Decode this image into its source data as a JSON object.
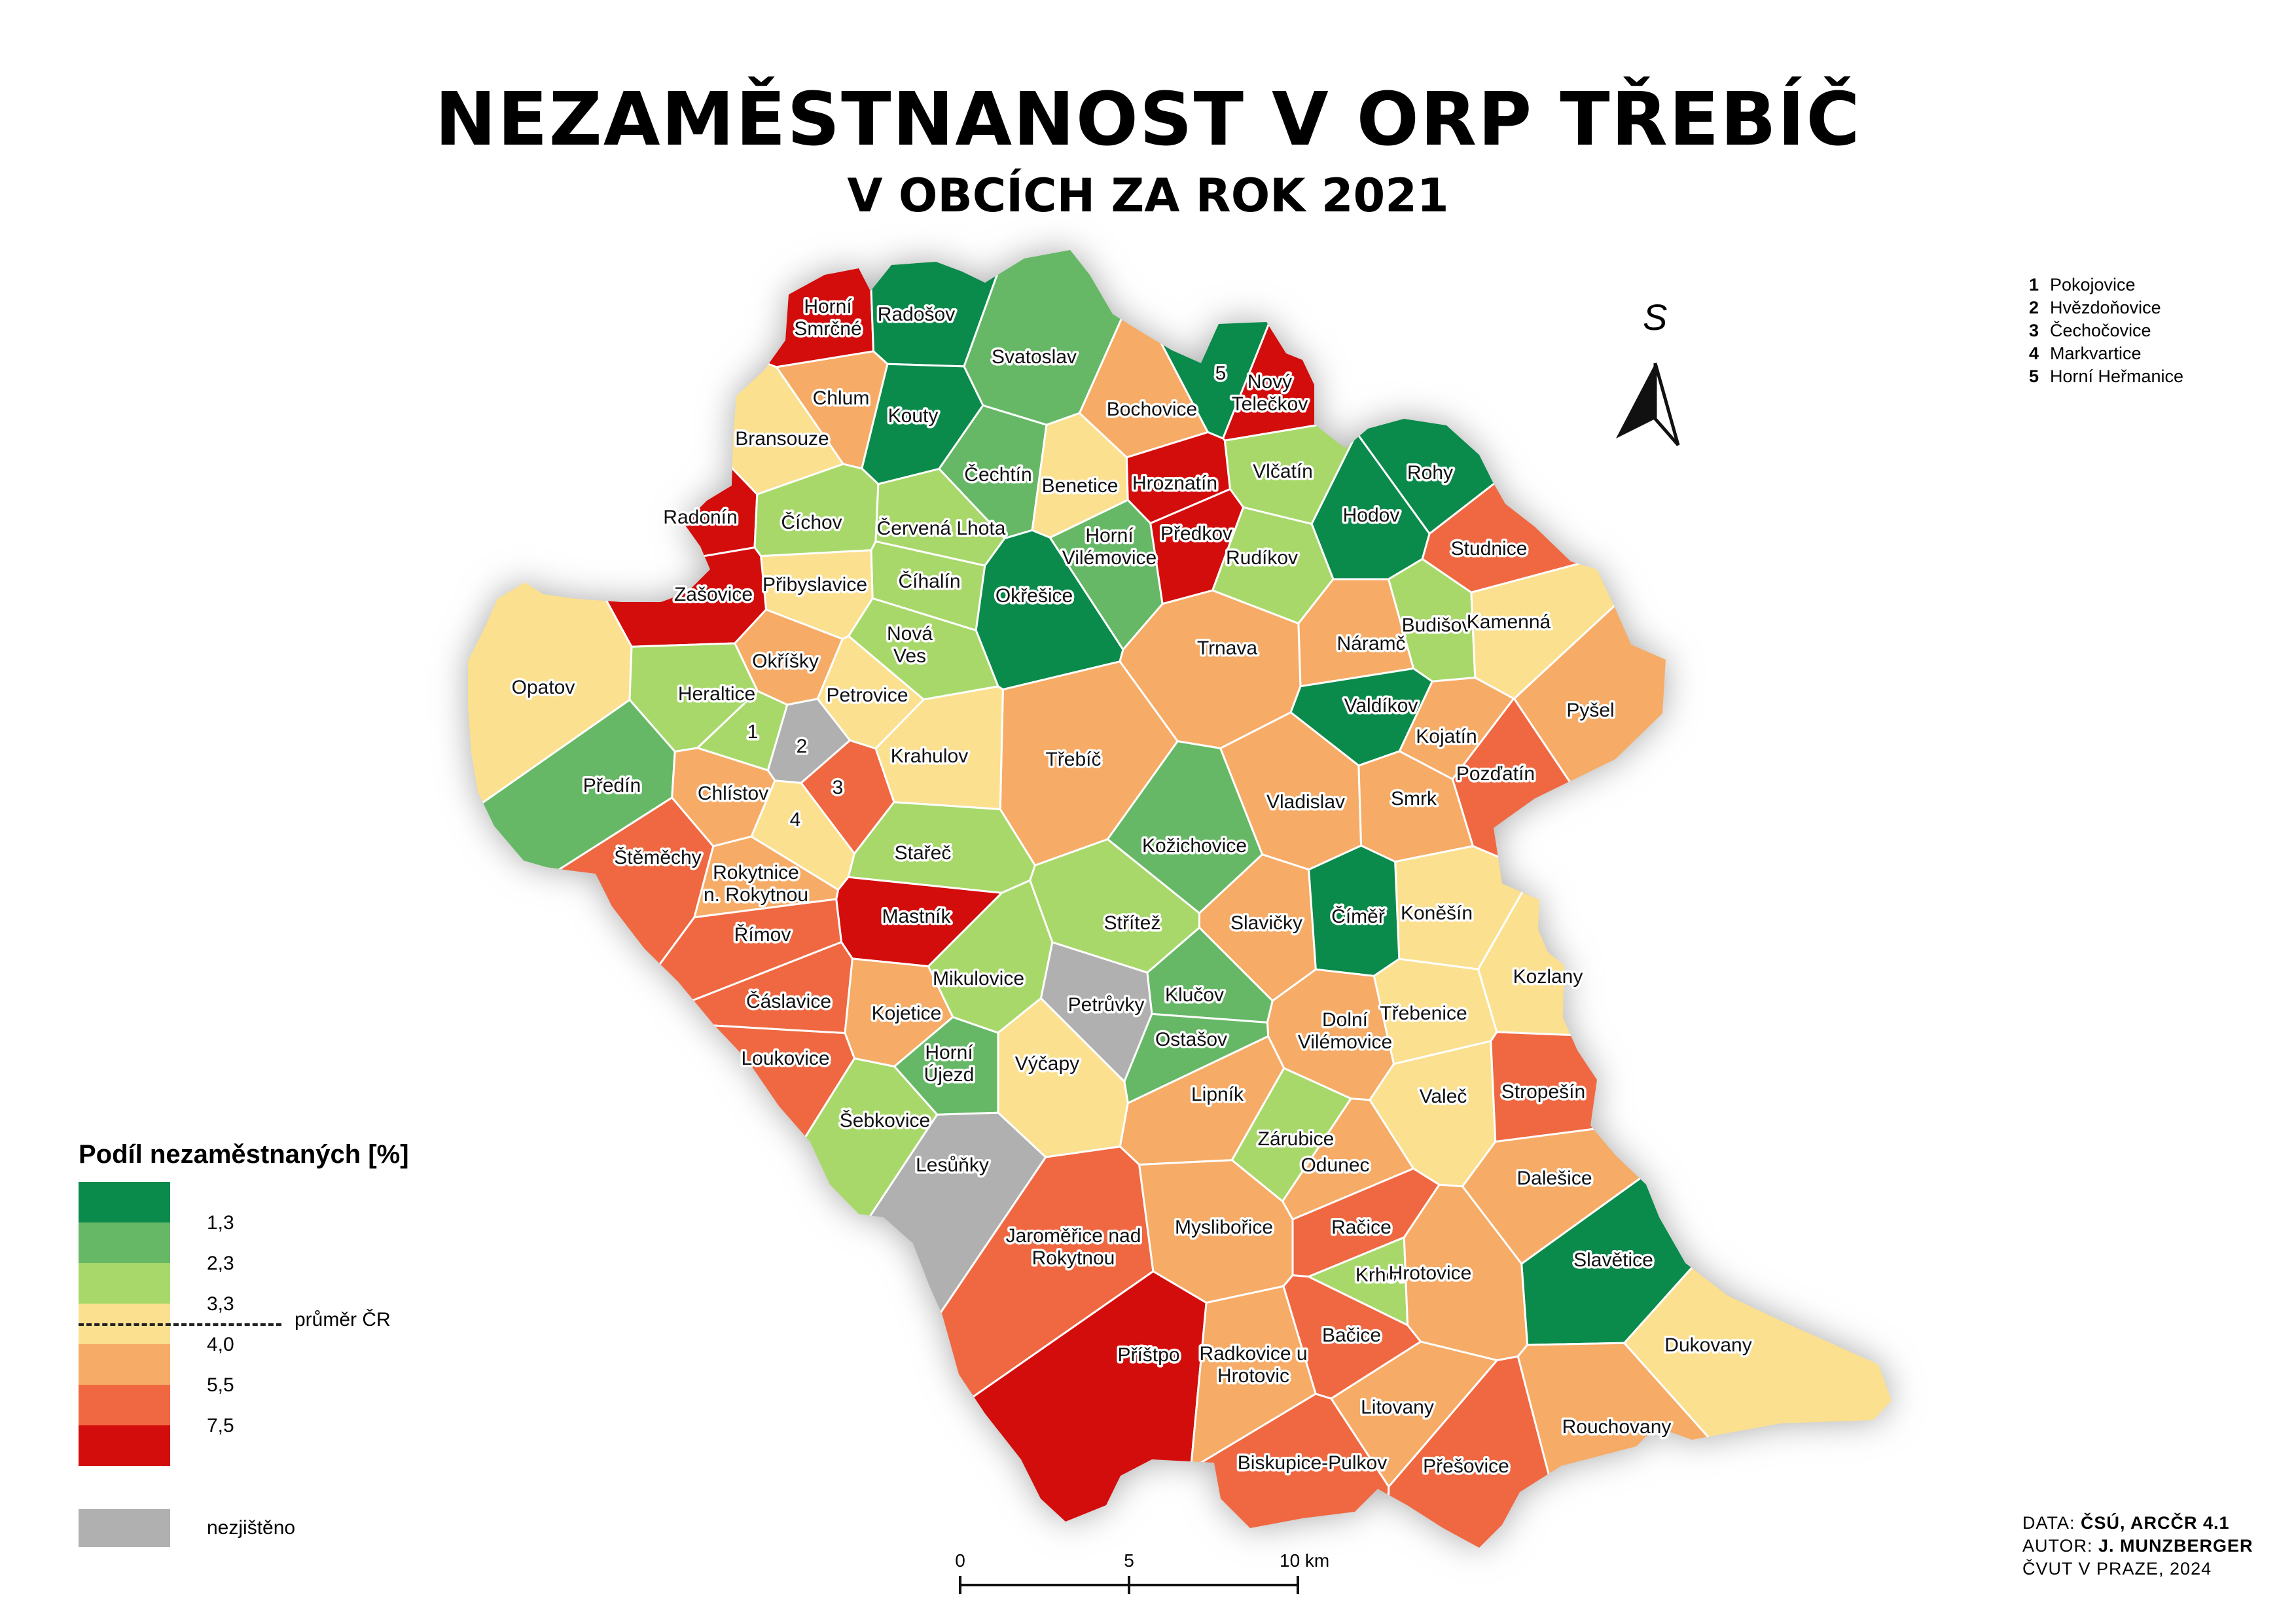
{
  "title": "NEZAMĚSTNANOST V ORP TŘEBÍČ",
  "subtitle": "V OBCÍCH ZA ROK 2021",
  "north_arrow": {
    "label": "S"
  },
  "notes": [
    {
      "num": "1",
      "name": "Pokojovice"
    },
    {
      "num": "2",
      "name": "Hvězdoňovice"
    },
    {
      "num": "3",
      "name": "Čechočovice"
    },
    {
      "num": "4",
      "name": "Markvartice"
    },
    {
      "num": "5",
      "name": "Horní Heřmanice"
    }
  ],
  "legend": {
    "title": "Podíl nezaměstnaných [%]",
    "classes": [
      {
        "color": "#0a8a4b",
        "value": "1,3"
      },
      {
        "color": "#66b866",
        "value": "2,3"
      },
      {
        "color": "#a8d86a",
        "value": "3,3"
      },
      {
        "color": "#fbe08f",
        "value": "4,0"
      },
      {
        "color": "#f6ab66",
        "value": "5,5"
      },
      {
        "color": "#ef6842",
        "value": "7,5"
      },
      {
        "color": "#d30c0c",
        "value": ""
      }
    ],
    "average_label": "průměr ČR",
    "no_data": {
      "color": "#b0b0b0",
      "label": "nezjištěno"
    }
  },
  "scale_bar": {
    "ticks": [
      "0",
      "5",
      "10 km"
    ]
  },
  "credits": {
    "data_prefix": "DATA: ",
    "data_value": "ČSÚ, ARCČR 4.1",
    "author_prefix": "AUTOR: ",
    "author_value": "J. MUNZBERGER",
    "institution": "ČVUT V PRAZE, 2024"
  },
  "municipalities": [
    {
      "name": "Horní Smrčné",
      "lines": [
        "Horní",
        "Smrčné"
      ],
      "cls": 6
    },
    {
      "name": "Radošov",
      "lines": [
        "Radošov"
      ],
      "cls": 0
    },
    {
      "name": "Svatoslav",
      "lines": [
        "Svatoslav"
      ],
      "cls": 1
    },
    {
      "name": "Chlum",
      "lines": [
        "Chlum"
      ],
      "cls": 4
    },
    {
      "name": "Kouty",
      "lines": [
        "Kouty"
      ],
      "cls": 0
    },
    {
      "name": "Bransouze",
      "lines": [
        "Bransouze"
      ],
      "cls": 3
    },
    {
      "name": "Bochovice",
      "lines": [
        "Bochovice"
      ],
      "cls": 4
    },
    {
      "name": "Nový Telečkov",
      "lines": [
        "Nový",
        "Telečkov"
      ],
      "cls": 6
    },
    {
      "name": "Horní Heřmanice",
      "lines": [
        "5"
      ],
      "cls": 0
    },
    {
      "name": "Čechtín",
      "lines": [
        "Čechtín"
      ],
      "cls": 1
    },
    {
      "name": "Benetice",
      "lines": [
        "Benetice"
      ],
      "cls": 3
    },
    {
      "name": "Hroznatín",
      "lines": [
        "Hroznatín"
      ],
      "cls": 6
    },
    {
      "name": "Vlčatín",
      "lines": [
        "Vlčatín"
      ],
      "cls": 2
    },
    {
      "name": "Rohy",
      "lines": [
        "Rohy"
      ],
      "cls": 0
    },
    {
      "name": "Radonín",
      "lines": [
        "Radonín"
      ],
      "cls": 6
    },
    {
      "name": "Číchov",
      "lines": [
        "Číchov"
      ],
      "cls": 2
    },
    {
      "name": "Červená Lhota",
      "lines": [
        "Červená Lhota"
      ],
      "cls": 2
    },
    {
      "name": "Horní Vilémovice",
      "lines": [
        "Horní",
        "Vilémovice"
      ],
      "cls": 1
    },
    {
      "name": "Předkov",
      "lines": [
        "Předkov"
      ],
      "cls": 6
    },
    {
      "name": "Hodov",
      "lines": [
        "Hodov"
      ],
      "cls": 0
    },
    {
      "name": "Studnice",
      "lines": [
        "Studnice"
      ],
      "cls": 5
    },
    {
      "name": "Rudíkov",
      "lines": [
        "Rudíkov"
      ],
      "cls": 2
    },
    {
      "name": "Přibyslavice",
      "lines": [
        "Přibyslavice"
      ],
      "cls": 3
    },
    {
      "name": "Číhalín",
      "lines": [
        "Číhalín"
      ],
      "cls": 2
    },
    {
      "name": "Okřešice",
      "lines": [
        "Okřešice"
      ],
      "cls": 0
    },
    {
      "name": "Zašovice",
      "lines": [
        "Zašovice"
      ],
      "cls": 6
    },
    {
      "name": "Nová Ves",
      "lines": [
        "Nová",
        "Ves"
      ],
      "cls": 2
    },
    {
      "name": "Trnava",
      "lines": [
        "Trnava"
      ],
      "cls": 4
    },
    {
      "name": "Náramč",
      "lines": [
        "Náramč"
      ],
      "cls": 4
    },
    {
      "name": "Budišov",
      "lines": [
        "Budišov"
      ],
      "cls": 2
    },
    {
      "name": "Kamenná",
      "lines": [
        "Kamenná"
      ],
      "cls": 3
    },
    {
      "name": "Opatov",
      "lines": [
        "Opatov"
      ],
      "cls": 3
    },
    {
      "name": "Okříšky",
      "lines": [
        "Okříšky"
      ],
      "cls": 4
    },
    {
      "name": "Heraltice",
      "lines": [
        "Heraltice"
      ],
      "cls": 2
    },
    {
      "name": "Petrovice",
      "lines": [
        "Petrovice"
      ],
      "cls": 3
    },
    {
      "name": "Valdíkov",
      "lines": [
        "Valdíkov"
      ],
      "cls": 0
    },
    {
      "name": "Pyšel",
      "lines": [
        "Pyšel"
      ],
      "cls": 4
    },
    {
      "name": "Pokojovice",
      "lines": [
        "1"
      ],
      "cls": 2
    },
    {
      "name": "Hvězdoňovice",
      "lines": [
        "2"
      ],
      "cls": 7
    },
    {
      "name": "Kojatín",
      "lines": [
        "Kojatín"
      ],
      "cls": 4
    },
    {
      "name": "Třebíč",
      "lines": [
        "Třebíč"
      ],
      "cls": 4
    },
    {
      "name": "Krahulov",
      "lines": [
        "Krahulov"
      ],
      "cls": 3
    },
    {
      "name": "Předín",
      "lines": [
        "Předín"
      ],
      "cls": 1
    },
    {
      "name": "Pozďatín",
      "lines": [
        "Pozďatín"
      ],
      "cls": 5
    },
    {
      "name": "Chlístov",
      "lines": [
        "Chlístov"
      ],
      "cls": 4
    },
    {
      "name": "Čechočovice",
      "lines": [
        "3"
      ],
      "cls": 5
    },
    {
      "name": "Vladislav",
      "lines": [
        "Vladislav"
      ],
      "cls": 4
    },
    {
      "name": "Smrk",
      "lines": [
        "Smrk"
      ],
      "cls": 4
    },
    {
      "name": "Markvartice",
      "lines": [
        "4"
      ],
      "cls": 3
    },
    {
      "name": "Štěměchy",
      "lines": [
        "Štěměchy"
      ],
      "cls": 5
    },
    {
      "name": "Stařeč",
      "lines": [
        "Stařeč"
      ],
      "cls": 2
    },
    {
      "name": "Kožichovice",
      "lines": [
        "Kožichovice"
      ],
      "cls": 1
    },
    {
      "name": "Rokytnice n. Rokytnou",
      "lines": [
        "Rokytnice",
        "n. Rokytnou"
      ],
      "cls": 4
    },
    {
      "name": "Koněšín",
      "lines": [
        "Koněšín"
      ],
      "cls": 3
    },
    {
      "name": "Mastník",
      "lines": [
        "Mastník"
      ],
      "cls": 6
    },
    {
      "name": "Střítež",
      "lines": [
        "Střítež"
      ],
      "cls": 2
    },
    {
      "name": "Slavičky",
      "lines": [
        "Slavičky"
      ],
      "cls": 4
    },
    {
      "name": "Číměř",
      "lines": [
        "Číměř"
      ],
      "cls": 0
    },
    {
      "name": "Římov",
      "lines": [
        "Římov"
      ],
      "cls": 5
    },
    {
      "name": "Mikulovice",
      "lines": [
        "Mikulovice"
      ],
      "cls": 2
    },
    {
      "name": "Kozlany",
      "lines": [
        "Kozlany"
      ],
      "cls": 3
    },
    {
      "name": "Klučov",
      "lines": [
        "Klučov"
      ],
      "cls": 1
    },
    {
      "name": "Petrůvky",
      "lines": [
        "Petrůvky"
      ],
      "cls": 7
    },
    {
      "name": "Čáslavice",
      "lines": [
        "Čáslavice"
      ],
      "cls": 5
    },
    {
      "name": "Kojetice",
      "lines": [
        "Kojetice"
      ],
      "cls": 4
    },
    {
      "name": "Třebenice",
      "lines": [
        "Třebenice"
      ],
      "cls": 3
    },
    {
      "name": "Dolní Vilémovice",
      "lines": [
        "Dolní",
        "Vilémovice"
      ],
      "cls": 4
    },
    {
      "name": "Ostašov",
      "lines": [
        "Ostašov"
      ],
      "cls": 1
    },
    {
      "name": "Horní Újezd",
      "lines": [
        "Horní",
        "Újezd"
      ],
      "cls": 1
    },
    {
      "name": "Loukovice",
      "lines": [
        "Loukovice"
      ],
      "cls": 5
    },
    {
      "name": "Výčapy",
      "lines": [
        "Výčapy"
      ],
      "cls": 3
    },
    {
      "name": "Lipník",
      "lines": [
        "Lipník"
      ],
      "cls": 4
    },
    {
      "name": "Valeč",
      "lines": [
        "Valeč"
      ],
      "cls": 3
    },
    {
      "name": "Stropešín",
      "lines": [
        "Stropešín"
      ],
      "cls": 5
    },
    {
      "name": "Šebkovice",
      "lines": [
        "Šebkovice"
      ],
      "cls": 2
    },
    {
      "name": "Zárubice",
      "lines": [
        "Zárubice"
      ],
      "cls": 2
    },
    {
      "name": "Lesůňky",
      "lines": [
        "Lesůňky"
      ],
      "cls": 7
    },
    {
      "name": "Odunec",
      "lines": [
        "Odunec"
      ],
      "cls": 4
    },
    {
      "name": "Dalešice",
      "lines": [
        "Dalešice"
      ],
      "cls": 4
    },
    {
      "name": "Račice",
      "lines": [
        "Račice"
      ],
      "cls": 5
    },
    {
      "name": "Jaroměřice nad Rokytnou",
      "lines": [
        "Jaroměřice nad",
        "Rokytnou"
      ],
      "cls": 5
    },
    {
      "name": "Myslibořice",
      "lines": [
        "Myslibořice"
      ],
      "cls": 4
    },
    {
      "name": "Slavětice",
      "lines": [
        "Slavětice"
      ],
      "cls": 0
    },
    {
      "name": "Krhov",
      "lines": [
        "Krhov"
      ],
      "cls": 2
    },
    {
      "name": "Hrotovice",
      "lines": [
        "Hrotovice"
      ],
      "cls": 4
    },
    {
      "name": "Bačice",
      "lines": [
        "Bačice"
      ],
      "cls": 5
    },
    {
      "name": "Dukovany",
      "lines": [
        "Dukovany"
      ],
      "cls": 3
    },
    {
      "name": "Příštpo",
      "lines": [
        "Příštpo"
      ],
      "cls": 6
    },
    {
      "name": "Radkovice u Hrotovic",
      "lines": [
        "Radkovice u",
        "Hrotovic"
      ],
      "cls": 4
    },
    {
      "name": "Litovany",
      "lines": [
        "Litovany"
      ],
      "cls": 4
    },
    {
      "name": "Rouchovany",
      "lines": [
        "Rouchovany"
      ],
      "cls": 4
    },
    {
      "name": "Biskupice-Pulkov",
      "lines": [
        "Biskupice-Pulkov"
      ],
      "cls": 5
    },
    {
      "name": "Přešovice",
      "lines": [
        "Přešovice"
      ],
      "cls": 5
    }
  ]
}
